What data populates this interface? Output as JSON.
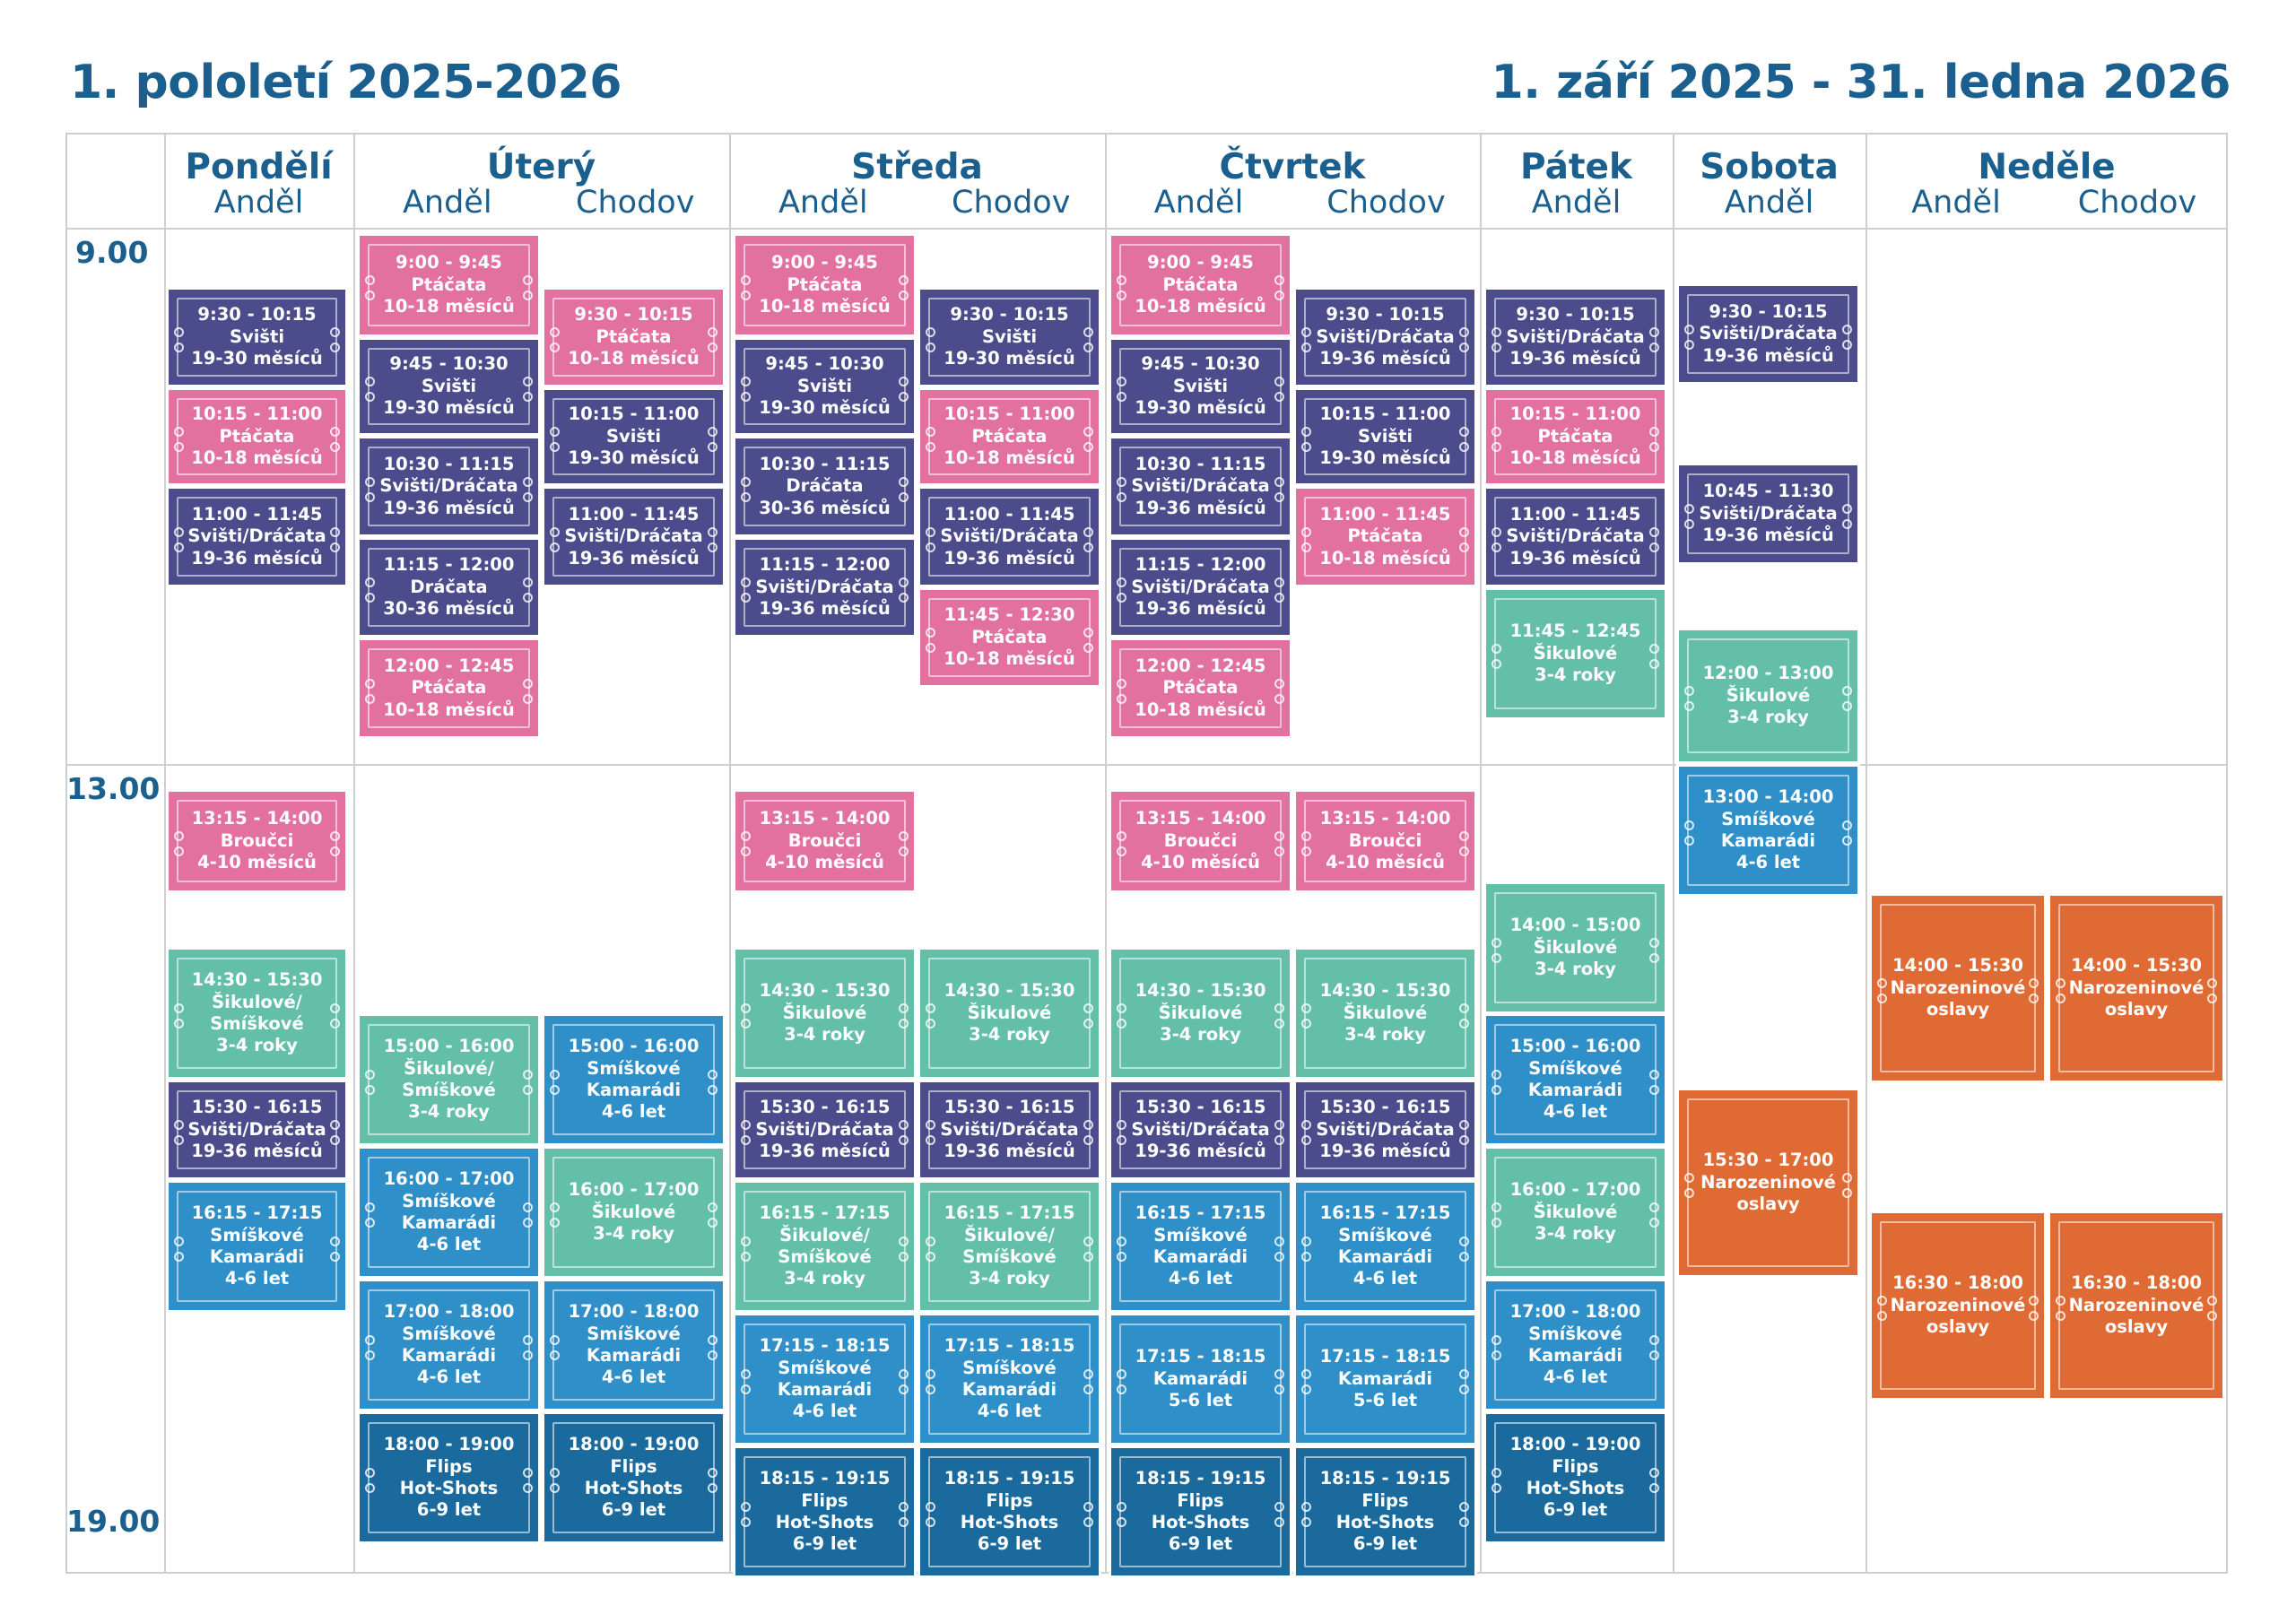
{
  "header": {
    "title_left": "1. pololetí 2025-2026",
    "title_right": "1. září 2025 - 31. ledna 2026"
  },
  "colors": {
    "pink": "#e2719f",
    "navy": "#4c4c8c",
    "teal": "#64bfa8",
    "blue": "#2f8fc8",
    "dark_blue": "#1b6a9e",
    "orange": "#e06a33",
    "heading": "#1a5f8e",
    "grid": "#cfcfcf"
  },
  "days": [
    {
      "name": "Pondělí",
      "locations": [
        "Anděl"
      ]
    },
    {
      "name": "Úterý",
      "locations": [
        "Anděl",
        "Chodov"
      ]
    },
    {
      "name": "Středa",
      "locations": [
        "Anděl",
        "Chodov"
      ]
    },
    {
      "name": "Čtvrtek",
      "locations": [
        "Anděl",
        "Chodov"
      ]
    },
    {
      "name": "Pátek",
      "locations": [
        "Anděl"
      ]
    },
    {
      "name": "Sobota",
      "locations": [
        "Anděl"
      ]
    },
    {
      "name": "Neděle",
      "locations": [
        "Anděl",
        "Chodov"
      ]
    }
  ],
  "time_labels": [
    "9.00",
    "13.00",
    "19.00"
  ],
  "columns": [
    {
      "id": "po-andel",
      "blocks": [
        {
          "color": "navy",
          "lines": [
            "9:30 - 10:15",
            "Svišti",
            "19-30 měsíců"
          ]
        },
        {
          "color": "pink",
          "lines": [
            "10:15 - 11:00",
            "Ptáčata",
            "10-18 měsíců"
          ]
        },
        {
          "color": "navy",
          "lines": [
            "11:00 - 11:45",
            "Svišti/Dráčata",
            "19-36 měsíců"
          ]
        },
        {
          "color": "pink",
          "lines": [
            "13:15 - 14:00",
            "Broučci",
            "4-10 měsíců"
          ]
        },
        {
          "color": "teal",
          "lines": [
            "14:30 - 15:30",
            "Šikulové/",
            "Smíškové",
            "3-4 roky"
          ]
        },
        {
          "color": "navy",
          "lines": [
            "15:30 - 16:15",
            "Svišti/Dráčata",
            "19-36 měsíců"
          ]
        },
        {
          "color": "blue",
          "lines": [
            "16:15 - 17:15",
            "Smíškové",
            "Kamarádi",
            "4-6 let"
          ]
        }
      ]
    },
    {
      "id": "ut-andel",
      "blocks": [
        {
          "color": "pink",
          "lines": [
            "9:00 - 9:45",
            "Ptáčata",
            "10-18 měsíců"
          ]
        },
        {
          "color": "navy",
          "lines": [
            "9:45 - 10:30",
            "Svišti",
            "19-30 měsíců"
          ]
        },
        {
          "color": "navy",
          "lines": [
            "10:30 - 11:15",
            "Svišti/Dráčata",
            "19-36 měsíců"
          ]
        },
        {
          "color": "navy",
          "lines": [
            "11:15 - 12:00",
            "Dráčata",
            "30-36 měsíců"
          ]
        },
        {
          "color": "pink",
          "lines": [
            "12:00 - 12:45",
            "Ptáčata",
            "10-18 měsíců"
          ]
        },
        {
          "color": "teal",
          "lines": [
            "15:00 - 16:00",
            "Šikulové/",
            "Smíškové",
            "3-4 roky"
          ]
        },
        {
          "color": "blue",
          "lines": [
            "16:00 - 17:00",
            "Smíškové",
            "Kamarádi",
            "4-6 let"
          ]
        },
        {
          "color": "blue",
          "lines": [
            "17:00 - 18:00",
            "Smíškové",
            "Kamarádi",
            "4-6 let"
          ]
        },
        {
          "color": "dark_blue",
          "lines": [
            "18:00 - 19:00",
            "Flips",
            "Hot-Shots",
            "6-9 let"
          ]
        }
      ]
    },
    {
      "id": "ut-chodov",
      "blocks": [
        {
          "color": "pink",
          "lines": [
            "9:30 - 10:15",
            "Ptáčata",
            "10-18 měsíců"
          ]
        },
        {
          "color": "navy",
          "lines": [
            "10:15 - 11:00",
            "Svišti",
            "19-30 měsíců"
          ]
        },
        {
          "color": "navy",
          "lines": [
            "11:00 - 11:45",
            "Svišti/Dráčata",
            "19-36 měsíců"
          ]
        },
        {
          "color": "blue",
          "lines": [
            "15:00 - 16:00",
            "Smíškové",
            "Kamarádi",
            "4-6 let"
          ]
        },
        {
          "color": "teal",
          "lines": [
            "16:00 - 17:00",
            "Šikulové",
            "3-4 roky"
          ]
        },
        {
          "color": "blue",
          "lines": [
            "17:00 - 18:00",
            "Smíškové",
            "Kamarádi",
            "4-6 let"
          ]
        },
        {
          "color": "dark_blue",
          "lines": [
            "18:00 - 19:00",
            "Flips",
            "Hot-Shots",
            "6-9 let"
          ]
        }
      ]
    },
    {
      "id": "st-andel",
      "blocks": [
        {
          "color": "pink",
          "lines": [
            "9:00 - 9:45",
            "Ptáčata",
            "10-18 měsíců"
          ]
        },
        {
          "color": "navy",
          "lines": [
            "9:45 - 10:30",
            "Svišti",
            "19-30 měsíců"
          ]
        },
        {
          "color": "navy",
          "lines": [
            "10:30 - 11:15",
            "Dráčata",
            "30-36 měsíců"
          ]
        },
        {
          "color": "navy",
          "lines": [
            "11:15 - 12:00",
            "Svišti/Dráčata",
            "19-36 měsíců"
          ]
        },
        {
          "color": "pink",
          "lines": [
            "13:15 - 14:00",
            "Broučci",
            "4-10 měsíců"
          ]
        },
        {
          "color": "teal",
          "lines": [
            "14:30 - 15:30",
            "Šikulové",
            "3-4 roky"
          ]
        },
        {
          "color": "navy",
          "lines": [
            "15:30 - 16:15",
            "Svišti/Dráčata",
            "19-36 měsíců"
          ]
        },
        {
          "color": "teal",
          "lines": [
            "16:15 - 17:15",
            "Šikulové/",
            "Smíškové",
            "3-4 roky"
          ]
        },
        {
          "color": "blue",
          "lines": [
            "17:15 - 18:15",
            "Smíškové",
            "Kamarádi",
            "4-6 let"
          ]
        },
        {
          "color": "dark_blue",
          "lines": [
            "18:15 - 19:15",
            "Flips",
            "Hot-Shots",
            "6-9 let"
          ]
        }
      ]
    },
    {
      "id": "st-chodov",
      "blocks": [
        {
          "color": "navy",
          "lines": [
            "9:30 - 10:15",
            "Svišti",
            "19-30 měsíců"
          ]
        },
        {
          "color": "pink",
          "lines": [
            "10:15 - 11:00",
            "Ptáčata",
            "10-18 měsíců"
          ]
        },
        {
          "color": "navy",
          "lines": [
            "11:00 - 11:45",
            "Svišti/Dráčata",
            "19-36 měsíců"
          ]
        },
        {
          "color": "pink",
          "lines": [
            "11:45 - 12:30",
            "Ptáčata",
            "10-18 měsíců"
          ]
        },
        {
          "color": "teal",
          "lines": [
            "14:30 - 15:30",
            "Šikulové",
            "3-4 roky"
          ]
        },
        {
          "color": "navy",
          "lines": [
            "15:30 - 16:15",
            "Svišti/Dráčata",
            "19-36 měsíců"
          ]
        },
        {
          "color": "teal",
          "lines": [
            "16:15 - 17:15",
            "Šikulové/",
            "Smíškové",
            "3-4 roky"
          ]
        },
        {
          "color": "blue",
          "lines": [
            "17:15 - 18:15",
            "Smíškové",
            "Kamarádi",
            "4-6 let"
          ]
        },
        {
          "color": "dark_blue",
          "lines": [
            "18:15 - 19:15",
            "Flips",
            "Hot-Shots",
            "6-9 let"
          ]
        }
      ]
    },
    {
      "id": "ct-andel",
      "blocks": [
        {
          "color": "pink",
          "lines": [
            "9:00 - 9:45",
            "Ptáčata",
            "10-18 měsíců"
          ]
        },
        {
          "color": "navy",
          "lines": [
            "9:45 - 10:30",
            "Svišti",
            "19-30 měsíců"
          ]
        },
        {
          "color": "navy",
          "lines": [
            "10:30 - 11:15",
            "Svišti/Dráčata",
            "19-36 měsíců"
          ]
        },
        {
          "color": "navy",
          "lines": [
            "11:15 - 12:00",
            "Svišti/Dráčata",
            "19-36 měsíců"
          ]
        },
        {
          "color": "pink",
          "lines": [
            "12:00 - 12:45",
            "Ptáčata",
            "10-18 měsíců"
          ]
        },
        {
          "color": "pink",
          "lines": [
            "13:15 - 14:00",
            "Broučci",
            "4-10 měsíců"
          ]
        },
        {
          "color": "teal",
          "lines": [
            "14:30 - 15:30",
            "Šikulové",
            "3-4 roky"
          ]
        },
        {
          "color": "navy",
          "lines": [
            "15:30 - 16:15",
            "Svišti/Dráčata",
            "19-36 měsíců"
          ]
        },
        {
          "color": "blue",
          "lines": [
            "16:15 - 17:15",
            "Smíškové",
            "Kamarádi",
            "4-6 let"
          ]
        },
        {
          "color": "blue",
          "lines": [
            "17:15 - 18:15",
            "Kamarádi",
            "5-6 let"
          ]
        },
        {
          "color": "dark_blue",
          "lines": [
            "18:15 - 19:15",
            "Flips",
            "Hot-Shots",
            "6-9 let"
          ]
        }
      ]
    },
    {
      "id": "ct-chodov",
      "blocks": [
        {
          "color": "navy",
          "lines": [
            "9:30 - 10:15",
            "Svišti/Dráčata",
            "19-36 měsíců"
          ]
        },
        {
          "color": "navy",
          "lines": [
            "10:15 - 11:00",
            "Svišti",
            "19-30 měsíců"
          ]
        },
        {
          "color": "pink",
          "lines": [
            "11:00 - 11:45",
            "Ptáčata",
            "10-18 měsíců"
          ]
        },
        {
          "color": "pink",
          "lines": [
            "13:15 - 14:00",
            "Broučci",
            "4-10 měsíců"
          ]
        },
        {
          "color": "teal",
          "lines": [
            "14:30 - 15:30",
            "Šikulové",
            "3-4 roky"
          ]
        },
        {
          "color": "navy",
          "lines": [
            "15:30 - 16:15",
            "Svišti/Dráčata",
            "19-36 měsíců"
          ]
        },
        {
          "color": "blue",
          "lines": [
            "16:15 - 17:15",
            "Smíškové",
            "Kamarádi",
            "4-6 let"
          ]
        },
        {
          "color": "blue",
          "lines": [
            "17:15 - 18:15",
            "Kamarádi",
            "5-6 let"
          ]
        },
        {
          "color": "dark_blue",
          "lines": [
            "18:15 - 19:15",
            "Flips",
            "Hot-Shots",
            "6-9 let"
          ]
        }
      ]
    },
    {
      "id": "pa-andel",
      "blocks": [
        {
          "color": "navy",
          "lines": [
            "9:30 - 10:15",
            "Svišti/Dráčata",
            "19-36 měsíců"
          ]
        },
        {
          "color": "pink",
          "lines": [
            "10:15 - 11:00",
            "Ptáčata",
            "10-18 měsíců"
          ]
        },
        {
          "color": "navy",
          "lines": [
            "11:00 - 11:45",
            "Svišti/Dráčata",
            "19-36 měsíců"
          ]
        },
        {
          "color": "teal",
          "lines": [
            "11:45 - 12:45",
            "Šikulové",
            "3-4 roky"
          ]
        },
        {
          "color": "teal",
          "lines": [
            "14:00 - 15:00",
            "Šikulové",
            "3-4 roky"
          ]
        },
        {
          "color": "blue",
          "lines": [
            "15:00 - 16:00",
            "Smíškové",
            "Kamarádi",
            "4-6 let"
          ]
        },
        {
          "color": "teal",
          "lines": [
            "16:00 - 17:00",
            "Šikulové",
            "3-4 roky"
          ]
        },
        {
          "color": "blue",
          "lines": [
            "17:00 - 18:00",
            "Smíškové",
            "Kamarádi",
            "4-6 let"
          ]
        },
        {
          "color": "dark_blue",
          "lines": [
            "18:00 - 19:00",
            "Flips",
            "Hot-Shots",
            "6-9 let"
          ]
        }
      ]
    },
    {
      "id": "so-andel",
      "blocks": [
        {
          "color": "navy",
          "lines": [
            "9:30 - 10:15",
            "Svišti/Dráčata",
            "19-36 měsíců"
          ]
        },
        {
          "color": "navy",
          "lines": [
            "10:45 - 11:30",
            "Svišti/Dráčata",
            "19-36 měsíců"
          ]
        },
        {
          "color": "teal",
          "lines": [
            "12:00 - 13:00",
            "Šikulové",
            "3-4 roky"
          ]
        },
        {
          "color": "blue",
          "lines": [
            "13:00 - 14:00",
            "Smíškové",
            "Kamarádi",
            "4-6 let"
          ]
        },
        {
          "color": "orange",
          "lines": [
            "15:30 - 17:00",
            "Narozeninové",
            "oslavy"
          ]
        }
      ]
    },
    {
      "id": "ne-andel",
      "blocks": [
        {
          "color": "orange",
          "lines": [
            "14:00 - 15:30",
            "Narozeninové",
            "oslavy"
          ]
        },
        {
          "color": "orange",
          "lines": [
            "16:30 - 18:00",
            "Narozeninové",
            "oslavy"
          ]
        }
      ]
    },
    {
      "id": "ne-chodov",
      "blocks": [
        {
          "color": "orange",
          "lines": [
            "14:00 - 15:30",
            "Narozeninové",
            "oslavy"
          ]
        },
        {
          "color": "orange",
          "lines": [
            "16:30 - 18:00",
            "Narozeninové",
            "oslavy"
          ]
        }
      ]
    }
  ]
}
